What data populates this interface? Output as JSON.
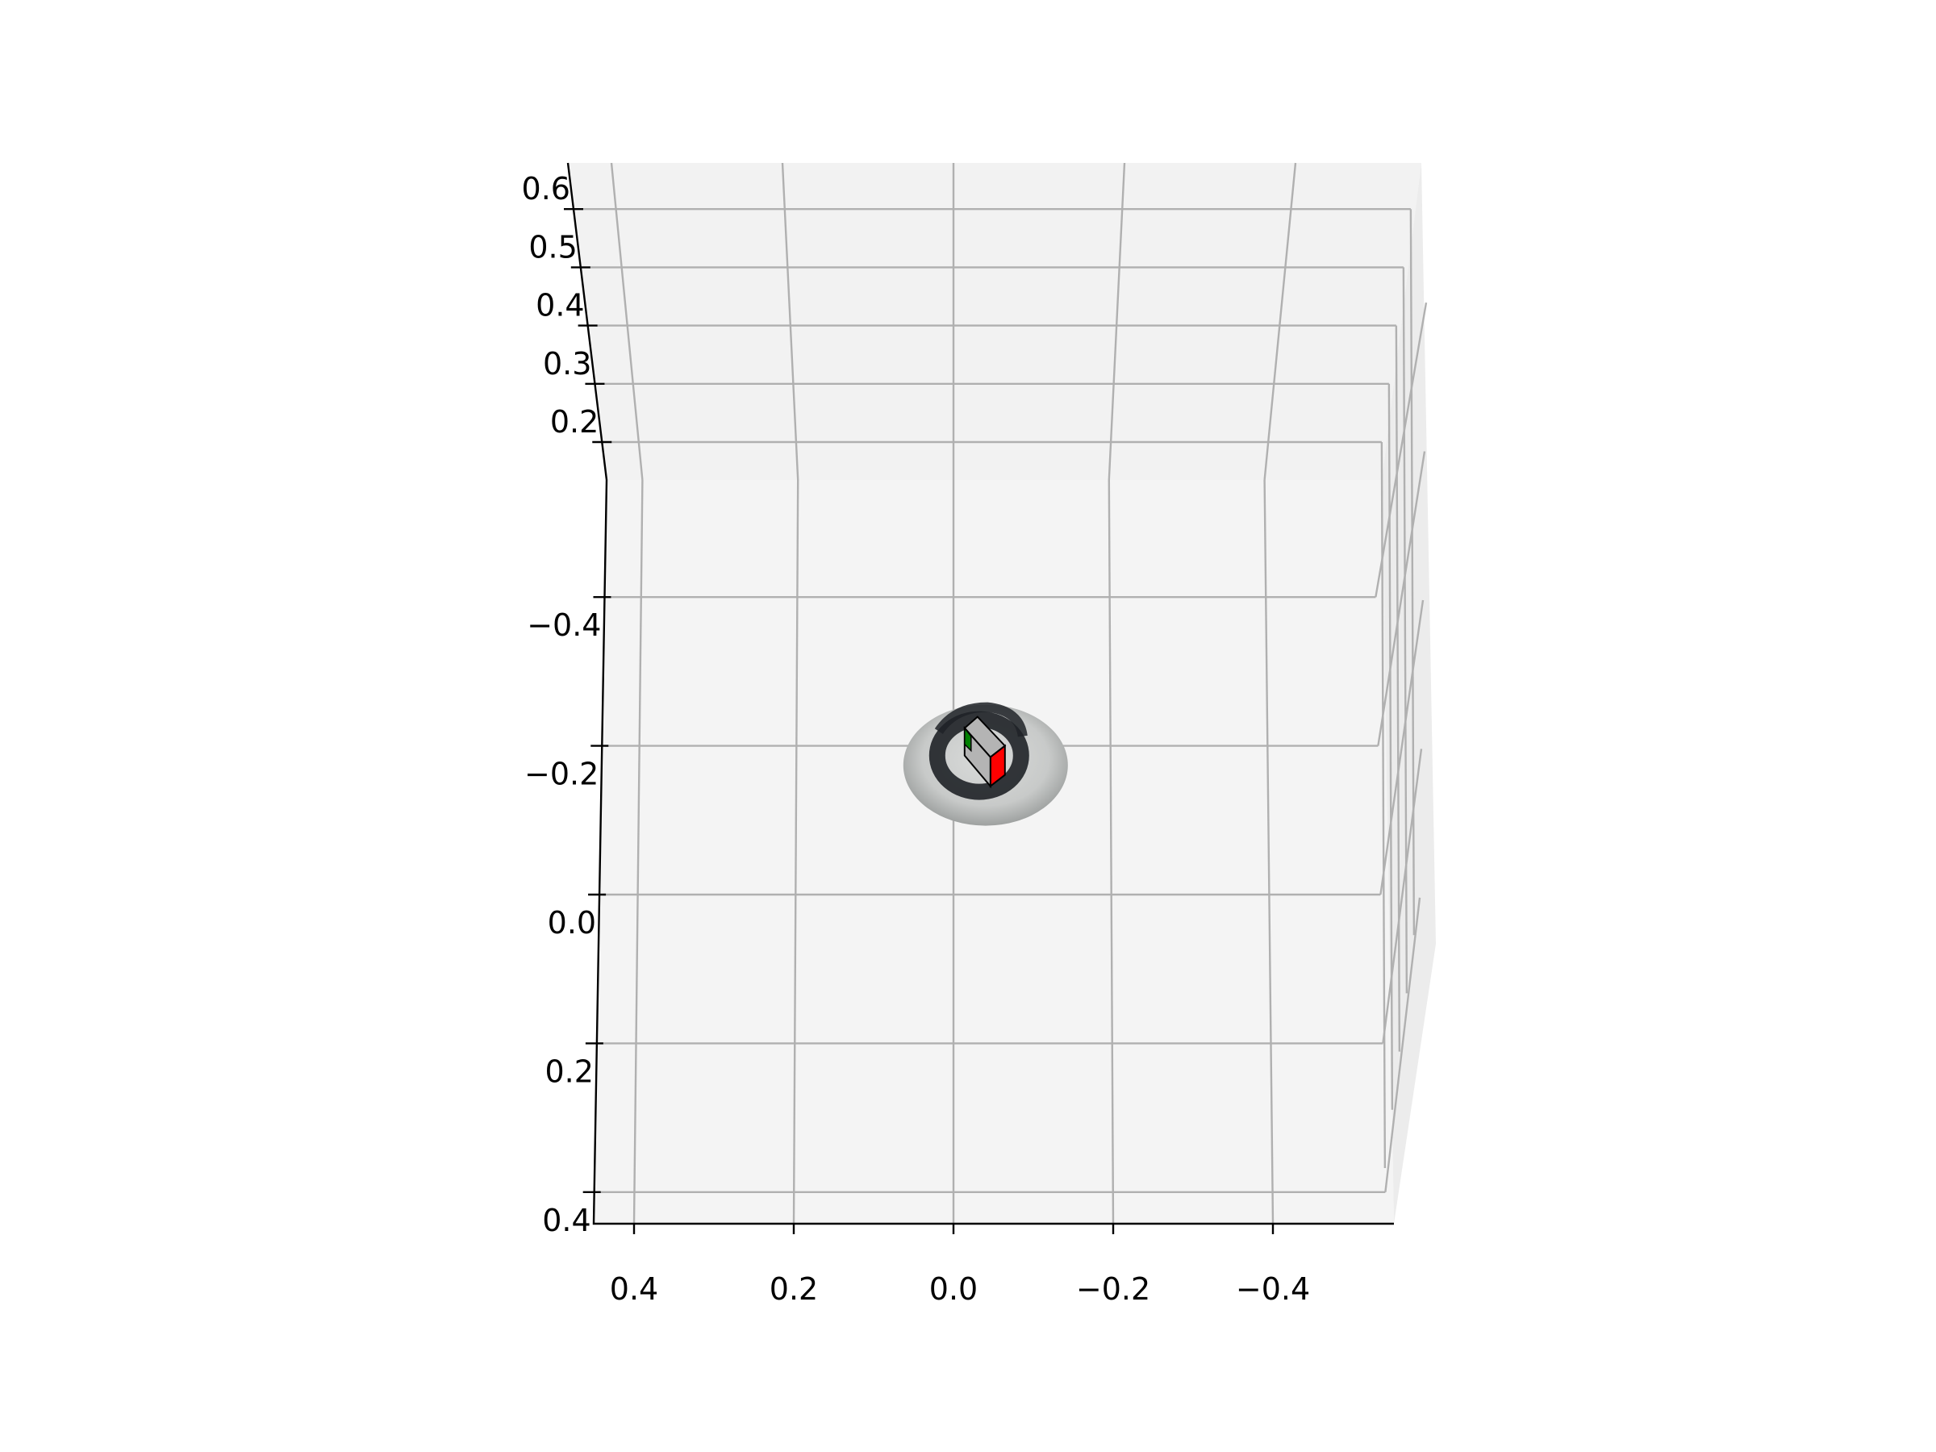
{
  "chart_data": {
    "type": "scatter",
    "projection": "3d",
    "title": "",
    "xlabel": "",
    "ylabel": "",
    "zlabel": "",
    "grid": true,
    "legend": "none",
    "x_axis": {
      "ticks": [
        0.4,
        0.2,
        0.0,
        -0.2,
        -0.4
      ],
      "tick_labels": [
        "0.4",
        "0.2",
        "0.0",
        "−0.2",
        "−0.4"
      ],
      "range": [
        0.45,
        -0.55
      ]
    },
    "y_axis": {
      "ticks": [
        -0.4,
        -0.2,
        0.0,
        0.2,
        0.4
      ],
      "tick_labels": [
        "−0.4",
        "−0.2",
        "0.0",
        "0.2",
        "0.4"
      ],
      "range": [
        -0.6,
        0.4
      ]
    },
    "z_axis": {
      "ticks": [
        0.2,
        0.3,
        0.4,
        0.5,
        0.6
      ],
      "tick_labels": [
        "0.2",
        "0.3",
        "0.4",
        "0.5",
        "0.6"
      ],
      "range": [
        0.1,
        0.65
      ]
    },
    "objects": [
      {
        "name": "point-cloud-disc",
        "type": "textured-surface",
        "center": [
          -0.02,
          -0.2,
          0.0
        ],
        "radius": 0.1,
        "color": "#c8cac9"
      },
      {
        "name": "trajectory-ring",
        "type": "trajectory",
        "center": [
          -0.03,
          -0.22,
          0.05
        ],
        "radius": 0.045,
        "color": "#1f2227"
      },
      {
        "name": "camera-box",
        "type": "box",
        "center": [
          -0.05,
          -0.2,
          0.1
        ],
        "face_colors": [
          "#b4b4b4",
          "#ff0000",
          "#008000"
        ]
      }
    ],
    "colors": {
      "pane": "#f2f2f2",
      "grid": "#b0b0b0",
      "axis": "#000000",
      "camera_front": "#ff0000",
      "camera_side": "#008000"
    }
  }
}
